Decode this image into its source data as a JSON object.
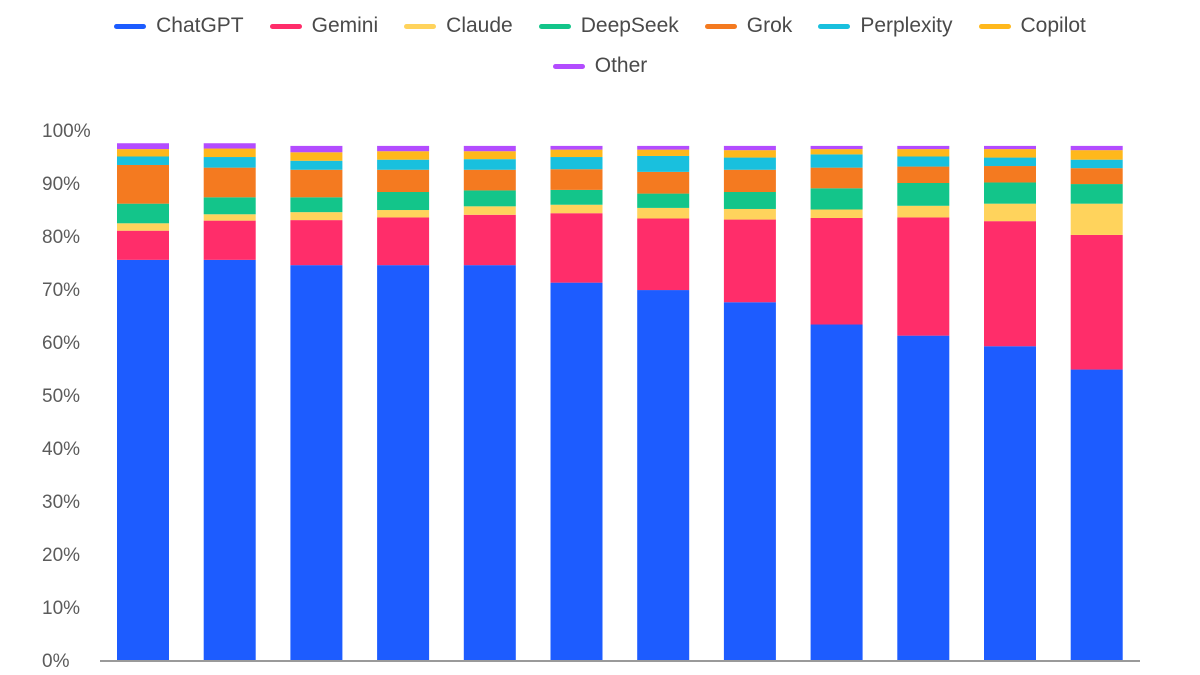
{
  "chart_data": {
    "type": "bar",
    "stacked": true,
    "title": "",
    "xlabel": "",
    "ylabel": "",
    "ylim": [
      0,
      100
    ],
    "yticks": [
      "0%",
      "10%",
      "20%",
      "30%",
      "40%",
      "50%",
      "60%",
      "70%",
      "80%",
      "90%",
      "100%"
    ],
    "grid": false,
    "legend_position": "top-center",
    "categories": [
      "",
      "",
      "",
      "",
      "",
      "",
      "",
      "",
      "",
      "",
      "",
      ""
    ],
    "series": [
      {
        "name": "ChatGPT",
        "color": "#1d5cff",
        "values": [
          75.5,
          75.5,
          74.5,
          74.5,
          74.5,
          71.2,
          69.8,
          67.5,
          63.3,
          61.2,
          59.2,
          54.8
        ]
      },
      {
        "name": "Gemini",
        "color": "#ff2d6a",
        "values": [
          5.5,
          7.4,
          8.5,
          9.0,
          9.5,
          13.1,
          13.5,
          15.6,
          20.1,
          22.3,
          23.6,
          25.4
        ]
      },
      {
        "name": "Claude",
        "color": "#ffd35c",
        "values": [
          1.4,
          1.2,
          1.5,
          1.4,
          1.6,
          1.6,
          2.0,
          2.0,
          1.6,
          2.2,
          3.3,
          5.9
        ]
      },
      {
        "name": "DeepSeek",
        "color": "#13c58a",
        "values": [
          3.7,
          3.2,
          2.8,
          3.4,
          3.0,
          2.8,
          2.7,
          3.2,
          4.0,
          4.3,
          4.0,
          3.7
        ]
      },
      {
        "name": "Grok",
        "color": "#f47a20",
        "values": [
          7.3,
          5.6,
          5.2,
          4.2,
          3.9,
          3.9,
          4.1,
          4.2,
          3.9,
          3.1,
          3.1,
          3.0
        ]
      },
      {
        "name": "Perplexity",
        "color": "#19c0de",
        "values": [
          1.6,
          2.0,
          1.7,
          1.9,
          2.0,
          2.3,
          3.0,
          2.3,
          2.5,
          1.9,
          1.6,
          1.6
        ]
      },
      {
        "name": "Copilot",
        "color": "#ffb81c",
        "values": [
          1.4,
          1.6,
          1.6,
          1.6,
          1.5,
          1.4,
          1.2,
          1.4,
          1.0,
          1.4,
          1.6,
          1.8
        ]
      },
      {
        "name": "Other",
        "color": "#b34cff",
        "values": [
          1.1,
          1.0,
          1.2,
          1.0,
          1.0,
          0.7,
          0.7,
          0.8,
          0.6,
          0.6,
          0.6,
          0.8
        ]
      }
    ]
  },
  "colors": {
    "axis_line": "#9a9a9a",
    "tick_text": "#5b5b5b",
    "legend_text": "#4a4a4a"
  }
}
